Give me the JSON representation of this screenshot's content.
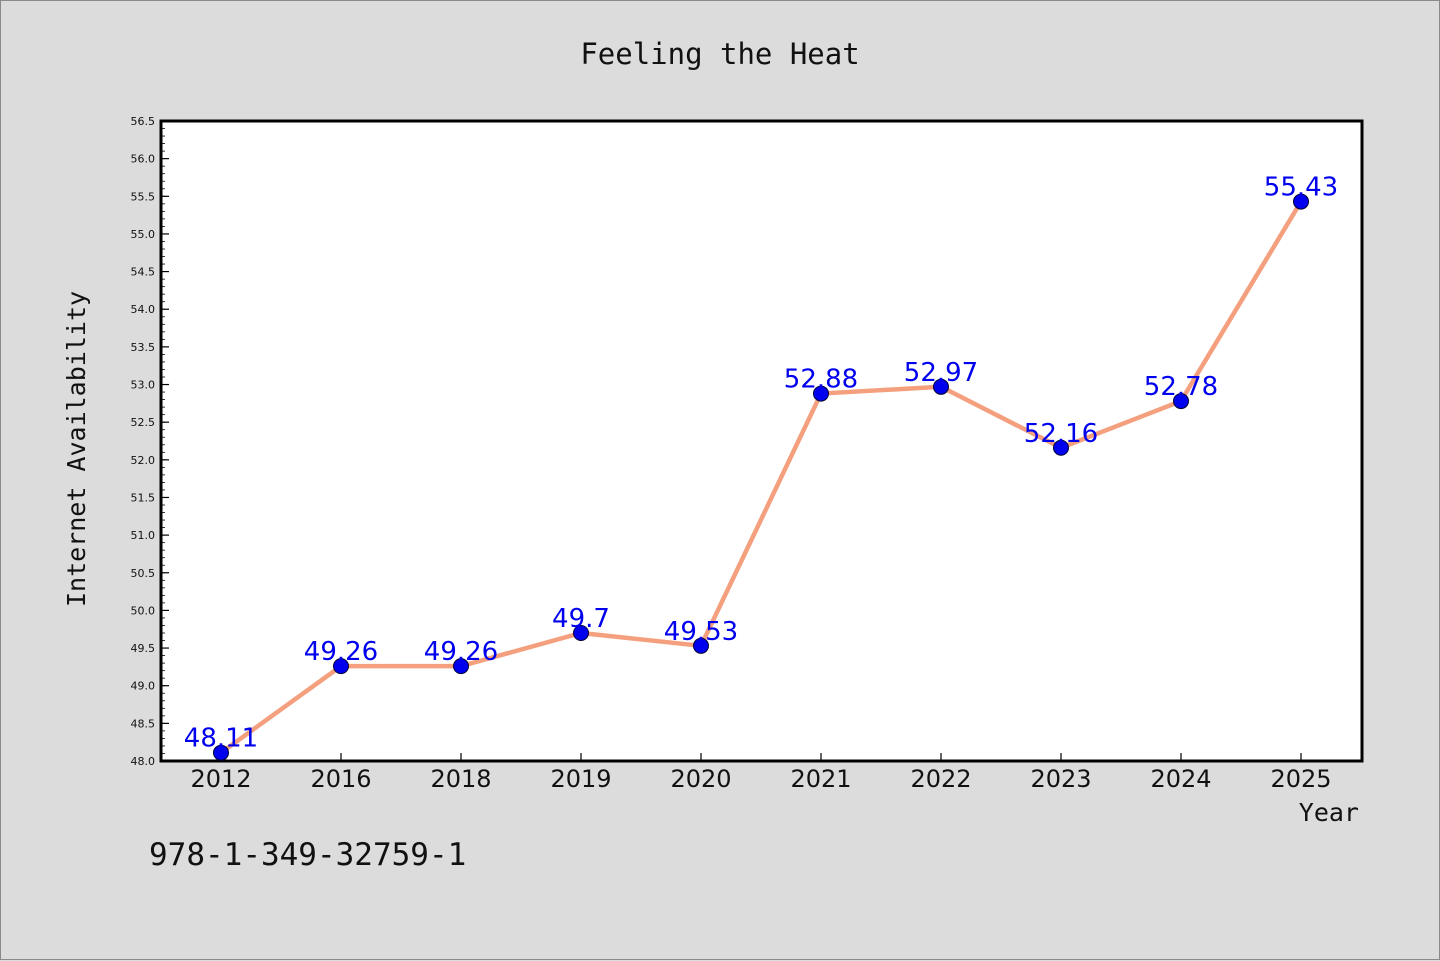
{
  "colors": {
    "background": "#dcdcdc",
    "plot_background": "#ffffff",
    "line": "#f4a07e",
    "marker": "#0000ee",
    "label": "#0000ee"
  },
  "chart_data": {
    "type": "line",
    "title": "Feeling the Heat",
    "xlabel": "Year",
    "ylabel": "Internet Availability",
    "categories": [
      "2012",
      "2016",
      "2018",
      "2019",
      "2020",
      "2021",
      "2022",
      "2023",
      "2024",
      "2025"
    ],
    "series": [
      {
        "values": [
          48.11,
          49.26,
          49.26,
          49.7,
          49.53,
          52.88,
          52.97,
          52.16,
          52.78,
          55.43
        ],
        "labels": [
          "48.11",
          "49.26",
          "49.26",
          "49.7",
          "49.53",
          "52.88",
          "52.97",
          "52.16",
          "52.78",
          "55.43"
        ]
      }
    ],
    "ylim": [
      48.0,
      56.5
    ],
    "yticks": [
      "48.0",
      "48.5",
      "49.0",
      "49.5",
      "50.0",
      "50.5",
      "51.0",
      "51.5",
      "52.0",
      "52.5",
      "53.0",
      "53.5",
      "54.0",
      "54.5",
      "55.0",
      "55.5",
      "56.0",
      "56.5"
    ],
    "grid": false,
    "legend": "none"
  },
  "footer": {
    "isbn": "978-1-349-32759-1"
  }
}
